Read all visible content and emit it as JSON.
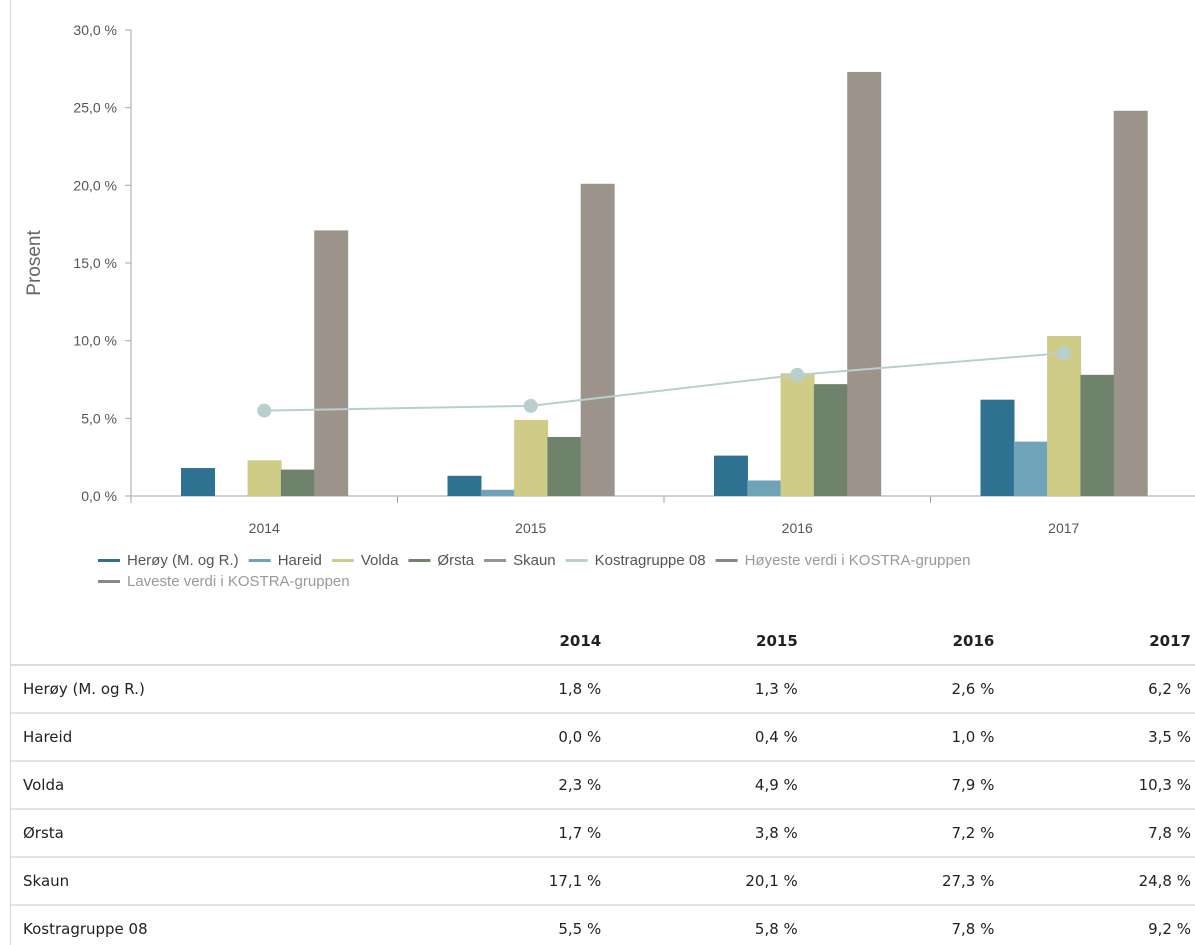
{
  "chart_data": {
    "type": "bar",
    "categories": [
      "2014",
      "2015",
      "2016",
      "2017"
    ],
    "ylabel": "Prosent",
    "ylim": [
      0,
      30
    ],
    "yticks": [
      "0,0 %",
      "5,0 %",
      "10,0 %",
      "15,0 %",
      "20,0 %",
      "25,0 %",
      "30,0 %"
    ],
    "series": [
      {
        "name": "Herøy (M. og R.)",
        "kind": "bar",
        "color": "#2f7191",
        "values": [
          1.8,
          1.3,
          2.6,
          6.2
        ]
      },
      {
        "name": "Hareid",
        "kind": "bar",
        "color": "#6fa3b8",
        "values": [
          0.0,
          0.4,
          1.0,
          3.5
        ]
      },
      {
        "name": "Volda",
        "kind": "bar",
        "color": "#cfcc87",
        "values": [
          2.3,
          4.9,
          7.9,
          10.3
        ]
      },
      {
        "name": "Ørsta",
        "kind": "bar",
        "color": "#6f826b",
        "values": [
          1.7,
          3.8,
          7.2,
          7.8
        ]
      },
      {
        "name": "Skaun",
        "kind": "bar",
        "color": "#9c948a",
        "values": [
          17.1,
          20.1,
          27.3,
          24.8
        ]
      },
      {
        "name": "Kostragruppe 08",
        "kind": "line",
        "color": "#b7d0cf",
        "values": [
          5.5,
          5.8,
          7.8,
          9.2
        ]
      }
    ],
    "legend": [
      {
        "label": "Herøy (M. og R.)",
        "color": "#2f7191",
        "muted": false
      },
      {
        "label": "Hareid",
        "color": "#6fa3b8",
        "muted": false
      },
      {
        "label": "Volda",
        "color": "#cfcc87",
        "muted": false
      },
      {
        "label": "Ørsta",
        "color": "#6f826b",
        "muted": false
      },
      {
        "label": "Skaun",
        "color": "#9c948a",
        "muted": false
      },
      {
        "label": "Kostragruppe 08",
        "color": "#b7d0cf",
        "muted": false
      },
      {
        "label": "Høyeste verdi i KOSTRA-gruppen",
        "color": "#888888",
        "muted": true
      },
      {
        "label": "Laveste verdi i KOSTRA-gruppen",
        "color": "#888888",
        "muted": true
      }
    ],
    "legend_position": "bottom",
    "grid": false
  },
  "table": {
    "headers": [
      "",
      "2014",
      "2015",
      "2016",
      "2017"
    ],
    "rows": [
      {
        "name": "Herøy (M. og R.)",
        "cells": [
          "1,8 %",
          "1,3 %",
          "2,6 %",
          "6,2 %"
        ]
      },
      {
        "name": "Hareid",
        "cells": [
          "0,0 %",
          "0,4 %",
          "1,0 %",
          "3,5 %"
        ]
      },
      {
        "name": "Volda",
        "cells": [
          "2,3 %",
          "4,9 %",
          "7,9 %",
          "10,3 %"
        ]
      },
      {
        "name": "Ørsta",
        "cells": [
          "1,7 %",
          "3,8 %",
          "7,2 %",
          "7,8 %"
        ]
      },
      {
        "name": "Skaun",
        "cells": [
          "17,1 %",
          "20,1 %",
          "27,3 %",
          "24,8 %"
        ]
      },
      {
        "name": "Kostragruppe 08",
        "cells": [
          "5,5 %",
          "5,8 %",
          "7,8 %",
          "9,2 %"
        ]
      }
    ]
  }
}
